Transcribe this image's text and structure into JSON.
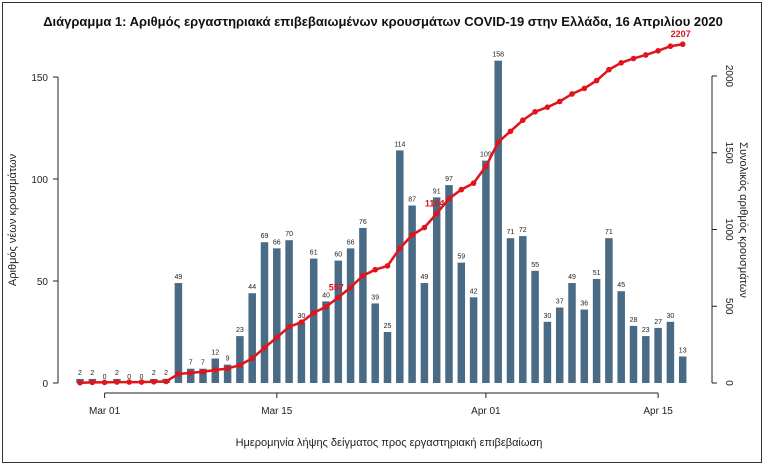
{
  "chart_data": {
    "type": "bar+line",
    "title": "Διάγραμμα 1: Αριθμός εργαστηριακά επιβεβαιωμένων κρουσμάτων COVID-19 στην Ελλάδα, 16 Απριλίου 2020",
    "xlabel": "Ημερομηνία λήψης δείγματος προς εργαστηριακή επιβεβαίωση",
    "ylabel_left": "Αριθμός νέων κρουσμάτων",
    "ylabel_right": "Συνολικός αριθμός κρουσμάτων",
    "ylim_left": [
      0,
      170
    ],
    "ylim_right": [
      0,
      2310
    ],
    "yticks_left": [
      0,
      50,
      100,
      150
    ],
    "yticks_right": [
      0,
      500,
      1000,
      1500,
      2000
    ],
    "xtick_labels": [
      {
        "label": "Mar 01",
        "day_index": 2
      },
      {
        "label": "Mar 15",
        "day_index": 16
      },
      {
        "label": "Apr 01",
        "day_index": 33
      },
      {
        "label": "Apr 15",
        "day_index": 47
      }
    ],
    "series": [
      {
        "type": "bar",
        "axis": "left",
        "values": [
          2,
          2,
          0,
          2,
          0,
          0,
          2,
          2,
          49,
          7,
          7,
          12,
          9,
          23,
          44,
          69,
          66,
          70,
          30,
          61,
          40,
          60,
          66,
          76,
          39,
          25,
          114,
          87,
          49,
          91,
          97,
          59,
          42,
          109,
          158,
          71,
          72,
          55,
          30,
          37,
          49,
          36,
          51,
          71,
          45,
          28,
          23,
          27,
          30,
          13
        ]
      },
      {
        "type": "line",
        "axis": "right",
        "values": [
          2,
          4,
          4,
          6,
          6,
          6,
          8,
          10,
          59,
          66,
          73,
          85,
          94,
          117,
          161,
          230,
          296,
          366,
          396,
          457,
          497,
          557,
          623,
          699,
          738,
          763,
          877,
          964,
          1013,
          1104,
          1201,
          1260,
          1302,
          1411,
          1569,
          1640,
          1712,
          1767,
          1797,
          1834,
          1883,
          1919,
          1970,
          2041,
          2086,
          2114,
          2137,
          2164,
          2194,
          2207
        ]
      }
    ],
    "cumulative_labels": [
      {
        "day_index": 21,
        "text": "557"
      },
      {
        "day_index": 29,
        "text": "1104"
      },
      {
        "day_index": 49,
        "text": "2207"
      }
    ],
    "colors": {
      "bar": "#4a6b85",
      "line": "#e0141b",
      "line_label": "#e0141b",
      "axis": "#222222"
    }
  }
}
